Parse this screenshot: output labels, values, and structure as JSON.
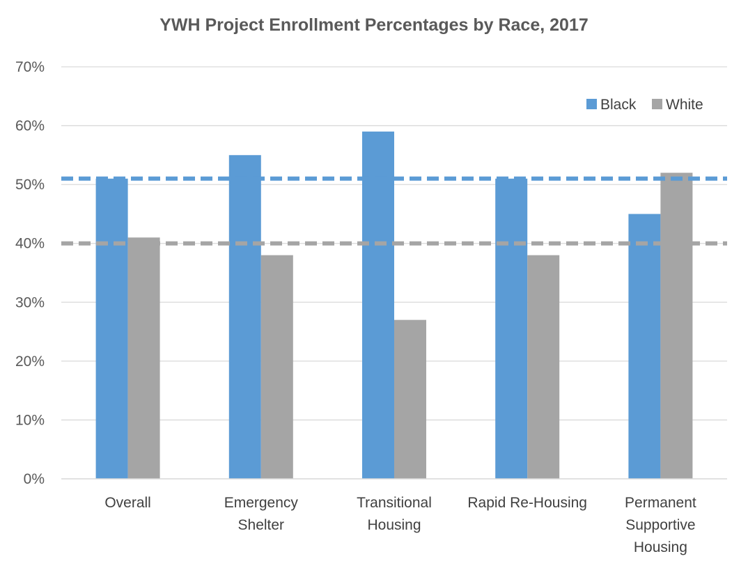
{
  "chart_data": {
    "type": "bar",
    "title": "YWH Project Enrollment Percentages by Race, 2017",
    "xlabel": "",
    "ylabel": "",
    "ylim": [
      0,
      70
    ],
    "ytick_step": 10,
    "ytick_suffix": "%",
    "grid": true,
    "legend_position": "top-right",
    "categories": [
      [
        "Overall"
      ],
      [
        "Emergency",
        "Shelter"
      ],
      [
        "Transitional",
        "Housing"
      ],
      [
        "Rapid Re-Housing"
      ],
      [
        "Permanent",
        "Supportive",
        "Housing"
      ]
    ],
    "series": [
      {
        "name": "Black",
        "color": "#5b9bd5",
        "values": [
          51,
          55,
          59,
          51,
          45
        ]
      },
      {
        "name": "White",
        "color": "#a5a5a5",
        "values": [
          41,
          38,
          27,
          38,
          52
        ]
      }
    ],
    "reference_lines": [
      {
        "series": "Black",
        "value": 51,
        "color": "#5b9bd5",
        "style": "dashed"
      },
      {
        "series": "White",
        "value": 40,
        "color": "#a5a5a5",
        "style": "dashed"
      }
    ]
  }
}
